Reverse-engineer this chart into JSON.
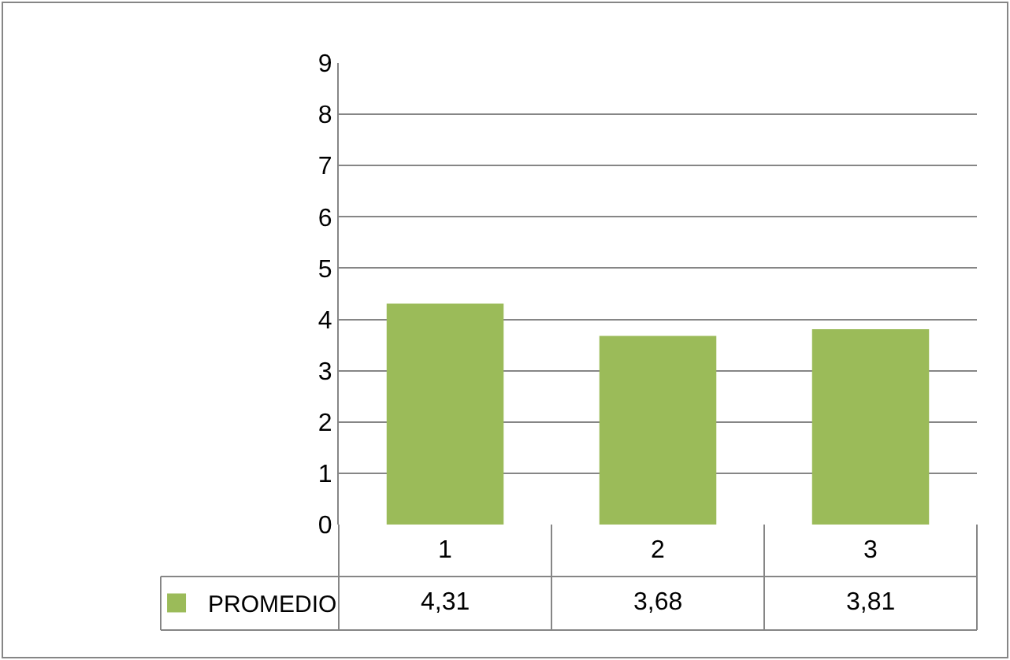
{
  "chart_data": {
    "type": "bar",
    "categories": [
      "1",
      "2",
      "3"
    ],
    "series": [
      {
        "name": "PROMEDIO",
        "color": "#9bbb59",
        "values": [
          4.31,
          3.68,
          3.81
        ],
        "value_labels": [
          "4,31",
          "3,68",
          "3,81"
        ]
      }
    ],
    "ylim": [
      0,
      9
    ],
    "yticks": [
      0,
      1,
      2,
      3,
      4,
      5,
      6,
      7,
      8,
      9
    ],
    "grid": "y",
    "legend": "bottom left"
  }
}
